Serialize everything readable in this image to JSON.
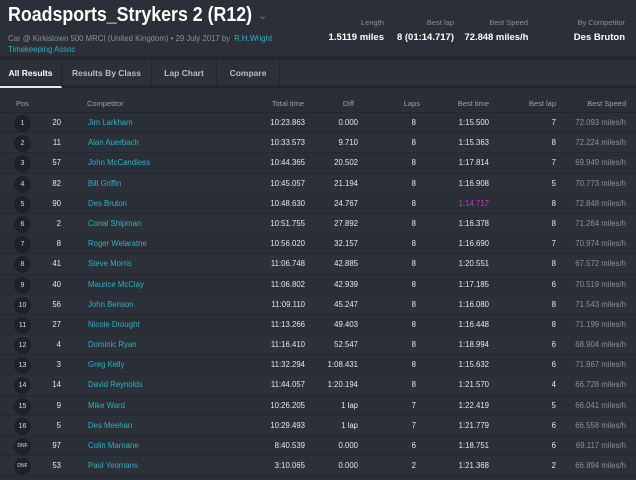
{
  "header": {
    "title": "Roadsports_Strykers 2 (R12)",
    "subtitle": "Car @ Kirkistown 500 MRCI (United Kingdom) • 29 July 2017 by",
    "organizer": "R.H.Wright Timekeeping Assoc",
    "stats": [
      {
        "label": "Length",
        "value": "1.5119 miles"
      },
      {
        "label": "Best lap",
        "value": "8 (01:14.717)"
      },
      {
        "label": "Best Speed",
        "value": "72.848 miles/h"
      },
      {
        "label": "By Competitor",
        "value": "Des Bruton"
      }
    ]
  },
  "tabs": [
    {
      "label": "All Results",
      "active": true
    },
    {
      "label": "Results By Class"
    },
    {
      "label": "Lap Chart"
    },
    {
      "label": "Compare"
    }
  ],
  "columns": [
    "Pos",
    "Competitor",
    "Total time",
    "Diff",
    "Laps",
    "Best time",
    "Best lap",
    "Best Speed"
  ],
  "colors": {
    "link": "#2fb0c2",
    "fastest": "#c23dc2",
    "background": "#2a2e37"
  },
  "rows": [
    [
      "1",
      "20",
      "Jim Larkham",
      "10:23.863",
      "0.000",
      "8",
      "1:15.500",
      "7",
      "72.093 miles/h"
    ],
    [
      "2",
      "11",
      "Alan Auerbach",
      "10:33.573",
      "9.710",
      "8",
      "1:15.363",
      "8",
      "72.224 miles/h"
    ],
    [
      "3",
      "57",
      "John McCandless",
      "10:44.365",
      "20.502",
      "8",
      "1:17.814",
      "7",
      "69.949 miles/h"
    ],
    [
      "4",
      "82",
      "Bill Griffin",
      "10:45.057",
      "21.194",
      "8",
      "1:16.908",
      "5",
      "70.773 miles/h"
    ],
    [
      "5",
      "90",
      "Des Bruton",
      "10:48.630",
      "24.767",
      "8",
      "1:14.717",
      "8",
      "72.848 miles/h"
    ],
    [
      "6",
      "2",
      "Conal Shipman",
      "10:51.755",
      "27.892",
      "8",
      "1:16.378",
      "8",
      "71.264 miles/h"
    ],
    [
      "7",
      "8",
      "Roger Welaratne",
      "10:56.020",
      "32.157",
      "8",
      "1:16.690",
      "7",
      "70.974 miles/h"
    ],
    [
      "8",
      "41",
      "Steve Morris",
      "11:06.748",
      "42.885",
      "8",
      "1:20.551",
      "8",
      "67.572 miles/h"
    ],
    [
      "9",
      "40",
      "Maurice McClay",
      "11:06.802",
      "42.939",
      "8",
      "1:17.185",
      "6",
      "70.519 miles/h"
    ],
    [
      "10",
      "56",
      "John Benson",
      "11:09.110",
      "45.247",
      "8",
      "1:16.080",
      "8",
      "71.543 miles/h"
    ],
    [
      "11",
      "27",
      "Nicole Drought",
      "11:13.266",
      "49.403",
      "8",
      "1:16.448",
      "8",
      "71.199 miles/h"
    ],
    [
      "12",
      "4",
      "Dominic Ryan",
      "11:16.410",
      "52.547",
      "8",
      "1:18.994",
      "6",
      "68.904 miles/h"
    ],
    [
      "13",
      "3",
      "Greg Kelly",
      "11:32.294",
      "1:08.431",
      "8",
      "1:15.632",
      "6",
      "71.967 miles/h"
    ],
    [
      "14",
      "14",
      "David Reynolds",
      "11:44.057",
      "1:20.194",
      "8",
      "1:21.570",
      "4",
      "66.728 miles/h"
    ],
    [
      "15",
      "9",
      "Mike Ward",
      "10:26.205",
      "1 lap",
      "7",
      "1:22.419",
      "5",
      "66.041 miles/h"
    ],
    [
      "16",
      "5",
      "Des Meehan",
      "10:29.493",
      "1 lap",
      "7",
      "1:21.779",
      "6",
      "66.558 miles/h"
    ],
    [
      "DNF",
      "97",
      "Colin Marnane",
      "8:40.539",
      "0.000",
      "6",
      "1:18.751",
      "6",
      "69.117 miles/h"
    ],
    [
      "DNF",
      "53",
      "Paul Yeomans",
      "3:10.065",
      "0.000",
      "2",
      "1:21.368",
      "2",
      "66.894 miles/h"
    ]
  ],
  "fastest_row": 4
}
